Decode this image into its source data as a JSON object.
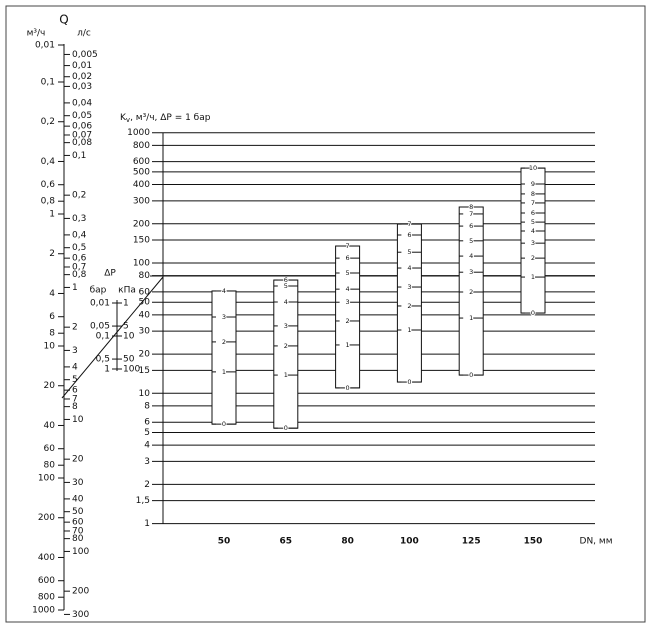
{
  "q_scale": {
    "title": "Q",
    "unit_m3h": "м³/ч",
    "unit_ls": "л/с",
    "m3h_ticks": [
      {
        "value": 0.01,
        "label": "0,01"
      },
      {
        "value": 0.1,
        "label": "0,1"
      },
      {
        "value": 0.2,
        "label": "0,2"
      },
      {
        "value": 0.4,
        "label": "0,4"
      },
      {
        "value": 0.6,
        "label": "0,6"
      },
      {
        "value": 0.8,
        "label": "0,8"
      },
      1,
      2,
      4,
      6,
      8,
      10,
      20,
      40,
      60,
      80,
      100,
      200,
      400,
      600,
      800,
      1000
    ],
    "ls_ticks": [
      {
        "value": 0.005,
        "label": "0,005"
      },
      {
        "value": 0.01,
        "label": "0,01"
      },
      {
        "value": 0.02,
        "label": "0,02"
      },
      {
        "value": 0.03,
        "label": "0,03"
      },
      {
        "value": 0.04,
        "label": "0,04"
      },
      {
        "value": 0.05,
        "label": "0,05"
      },
      {
        "value": 0.06,
        "label": "0,06"
      },
      {
        "value": 0.07,
        "label": "0,07"
      },
      {
        "value": 0.08,
        "label": "0,08"
      },
      {
        "value": 0.1,
        "label": "0,1"
      },
      {
        "value": 0.2,
        "label": "0,2"
      },
      {
        "value": 0.3,
        "label": "0,3"
      },
      {
        "value": 0.4,
        "label": "0,4"
      },
      {
        "value": 0.5,
        "label": "0,5"
      },
      {
        "value": 0.6,
        "label": "0,6"
      },
      {
        "value": 0.7,
        "label": "0,7"
      },
      {
        "value": 0.8,
        "label": "0,8"
      },
      1,
      2,
      3,
      4,
      5,
      6,
      7,
      8,
      10,
      20,
      30,
      40,
      50,
      60,
      70,
      80,
      100,
      200,
      300
    ]
  },
  "dp_scale": {
    "title": "ΔP",
    "unit_bar": "бар",
    "unit_kpa": "кПа",
    "bar_ticks": [
      {
        "value": 0.01,
        "label": "0,01"
      },
      {
        "value": 0.05,
        "label": "0,05"
      },
      {
        "value": 0.1,
        "label": "0,1"
      },
      {
        "value": 0.5,
        "label": "0,5"
      },
      1
    ],
    "kpa_ticks": [
      1,
      5,
      10,
      50,
      100
    ]
  },
  "kv_chart": {
    "y_label": "K",
    "y_label_sub": "v",
    "y_label_rest": ", м³/ч, ΔP = 1 бар",
    "x_label": "DN, мм",
    "yticks": [
      1000,
      800,
      600,
      500,
      400,
      300,
      200,
      150,
      100,
      80,
      60,
      50,
      40,
      30,
      20,
      15,
      10,
      8,
      6,
      5,
      4,
      3,
      2,
      {
        "value": 1.5,
        "label": "1,5"
      },
      1
    ],
    "categories": [
      50,
      65,
      80,
      100,
      125,
      150
    ],
    "boxes": [
      {
        "marks": [
          {
            "position": 0,
            "kv": 5.8
          },
          {
            "position": 1,
            "kv": 14.6
          },
          {
            "position": 2,
            "kv": 24.8
          },
          {
            "position": 3,
            "kv": 38.5
          },
          {
            "position": 4,
            "kv": 61
          }
        ]
      },
      {
        "marks": [
          {
            "position": 0,
            "kv": 5.4
          },
          {
            "position": 1,
            "kv": 13.8
          },
          {
            "position": 2,
            "kv": 23.1
          },
          {
            "position": 3,
            "kv": 32.9
          },
          {
            "position": 4,
            "kv": 50.2
          },
          {
            "position": 5,
            "kv": 66.6
          },
          {
            "position": 6,
            "kv": 74
          }
        ]
      },
      {
        "marks": [
          {
            "position": 0,
            "kv": 11
          },
          {
            "position": 1,
            "kv": 23.5
          },
          {
            "position": 2,
            "kv": 35.9
          },
          {
            "position": 3,
            "kv": 50
          },
          {
            "position": 4,
            "kv": 63
          },
          {
            "position": 5,
            "kv": 83.8
          },
          {
            "position": 6,
            "kv": 109
          },
          {
            "position": 7,
            "kv": 135
          }
        ]
      },
      {
        "marks": [
          {
            "position": 0,
            "kv": 12.2
          },
          {
            "position": 1,
            "kv": 30.6
          },
          {
            "position": 2,
            "kv": 46.8
          },
          {
            "position": 3,
            "kv": 65.4
          },
          {
            "position": 4,
            "kv": 91.5
          },
          {
            "position": 5,
            "kv": 121
          },
          {
            "position": 6,
            "kv": 164
          },
          {
            "position": 7,
            "kv": 199
          }
        ]
      },
      {
        "marks": [
          {
            "position": 0,
            "kv": 13.8
          },
          {
            "position": 1,
            "kv": 37.8
          },
          {
            "position": 2,
            "kv": 59.9
          },
          {
            "position": 3,
            "kv": 85
          },
          {
            "position": 4,
            "kv": 113
          },
          {
            "position": 5,
            "kv": 148
          },
          {
            "position": 6,
            "kv": 192
          },
          {
            "position": 7,
            "kv": 238
          },
          {
            "position": 8,
            "kv": 269
          }
        ]
      },
      {
        "marks": [
          {
            "position": 0,
            "kv": 41.3
          },
          {
            "position": 1,
            "kv": 78
          },
          {
            "position": 2,
            "kv": 109
          },
          {
            "position": 3,
            "kv": 142
          },
          {
            "position": 4,
            "kv": 176
          },
          {
            "position": 5,
            "kv": 206
          },
          {
            "position": 6,
            "kv": 242
          },
          {
            "position": 7,
            "kv": 289
          },
          {
            "position": 8,
            "kv": 339
          },
          {
            "position": 9,
            "kv": 404
          },
          {
            "position": 10,
            "kv": 535
          }
        ]
      }
    ]
  }
}
